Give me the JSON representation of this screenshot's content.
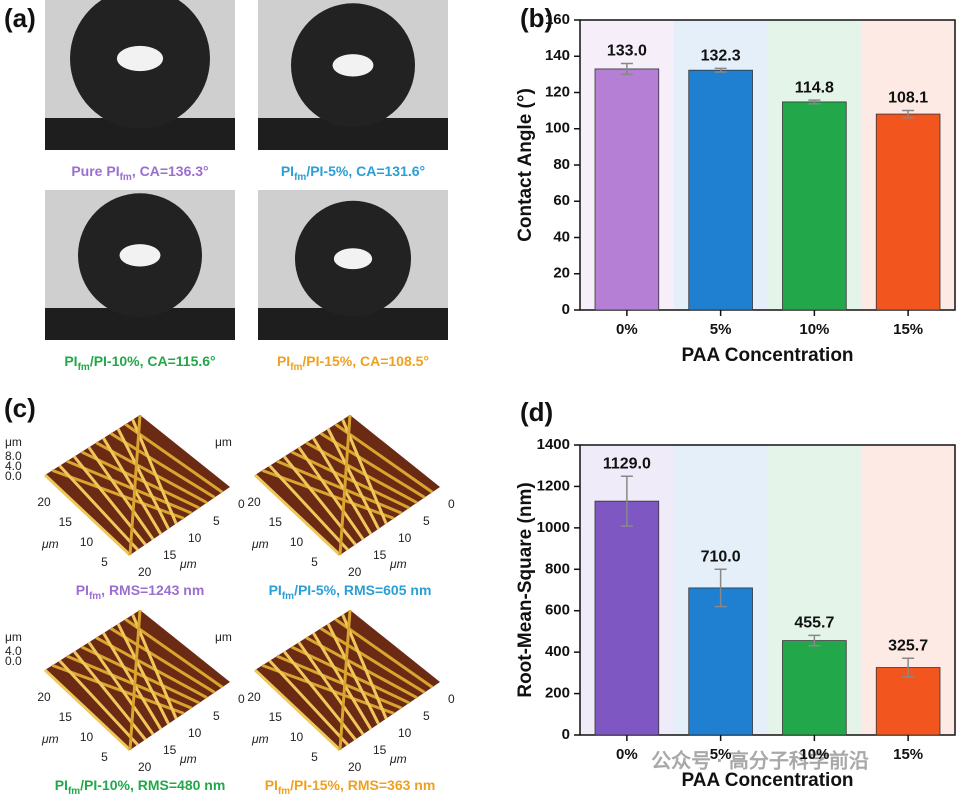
{
  "panels": {
    "a": "(a)",
    "b": "(b)",
    "c": "(c)",
    "d": "(d)"
  },
  "contact_images": [
    {
      "pre": "Pure PI",
      "sub": "fm",
      "post": ", CA=136.3°",
      "color": "#9b6fcf"
    },
    {
      "pre": "PI",
      "sub": "fm",
      "post": "/PI-5%, CA=131.6°",
      "color": "#2a9fd6"
    },
    {
      "pre": "PI",
      "sub": "fm",
      "post": "/PI-10%, CA=115.6°",
      "color": "#22a84a"
    },
    {
      "pre": "PI",
      "sub": "fm",
      "post": "/PI-15%, CA=108.5°",
      "color": "#f0a020"
    }
  ],
  "afm_axes": {
    "unit": "μm",
    "left": [
      "20",
      "15",
      "10",
      "5"
    ],
    "right": [
      "0",
      "5",
      "10",
      "15",
      "20"
    ]
  },
  "afm_images": [
    {
      "pre": "PI",
      "sub": "fm",
      "post": ", RMS=1243 nm",
      "color": "#9b6fcf",
      "z": [
        "8.0",
        "4.0",
        "0.0"
      ]
    },
    {
      "pre": "PI",
      "sub": "fm",
      "post": "/PI-5%, RMS=605 nm",
      "color": "#2a9fd6",
      "z": []
    },
    {
      "pre": "PI",
      "sub": "fm",
      "post": "/PI-10%, RMS=480 nm",
      "color": "#22a84a",
      "z": [
        "4.0",
        "0.0"
      ]
    },
    {
      "pre": "PI",
      "sub": "fm",
      "post": "/PI-15%, RMS=363 nm",
      "color": "#f0a020",
      "z": []
    }
  ],
  "watermark": "公众号 · 高分子科学前沿",
  "chart_data": [
    {
      "type": "bar",
      "xlabel": "PAA Concentration",
      "ylabel": "Contact Angle (°)",
      "categories": [
        "0%",
        "5%",
        "10%",
        "15%"
      ],
      "values": [
        133.0,
        132.3,
        114.8,
        108.1
      ],
      "value_labels": [
        "133.0",
        "132.3",
        "114.8",
        "108.1"
      ],
      "errors": [
        3,
        1,
        1,
        2
      ],
      "colors": [
        "#b57fd6",
        "#1f7fd1",
        "#22a84a",
        "#f2551e"
      ],
      "ylim": [
        0,
        160
      ],
      "yticks": [
        0,
        20,
        40,
        60,
        80,
        100,
        120,
        140,
        160
      ]
    },
    {
      "type": "bar",
      "xlabel": "PAA Concentration",
      "ylabel": "Root-Mean-Square (nm)",
      "categories": [
        "0%",
        "5%",
        "10%",
        "15%"
      ],
      "values": [
        1129.0,
        710.0,
        455.7,
        325.7
      ],
      "value_labels": [
        "1129.0",
        "710.0",
        "455.7",
        "325.7"
      ],
      "errors": [
        120,
        90,
        25,
        45
      ],
      "colors": [
        "#7e57c2",
        "#1f7fd1",
        "#22a84a",
        "#f2551e"
      ],
      "ylim": [
        0,
        1400
      ],
      "yticks": [
        0,
        200,
        400,
        600,
        800,
        1000,
        1200,
        1400
      ]
    }
  ]
}
